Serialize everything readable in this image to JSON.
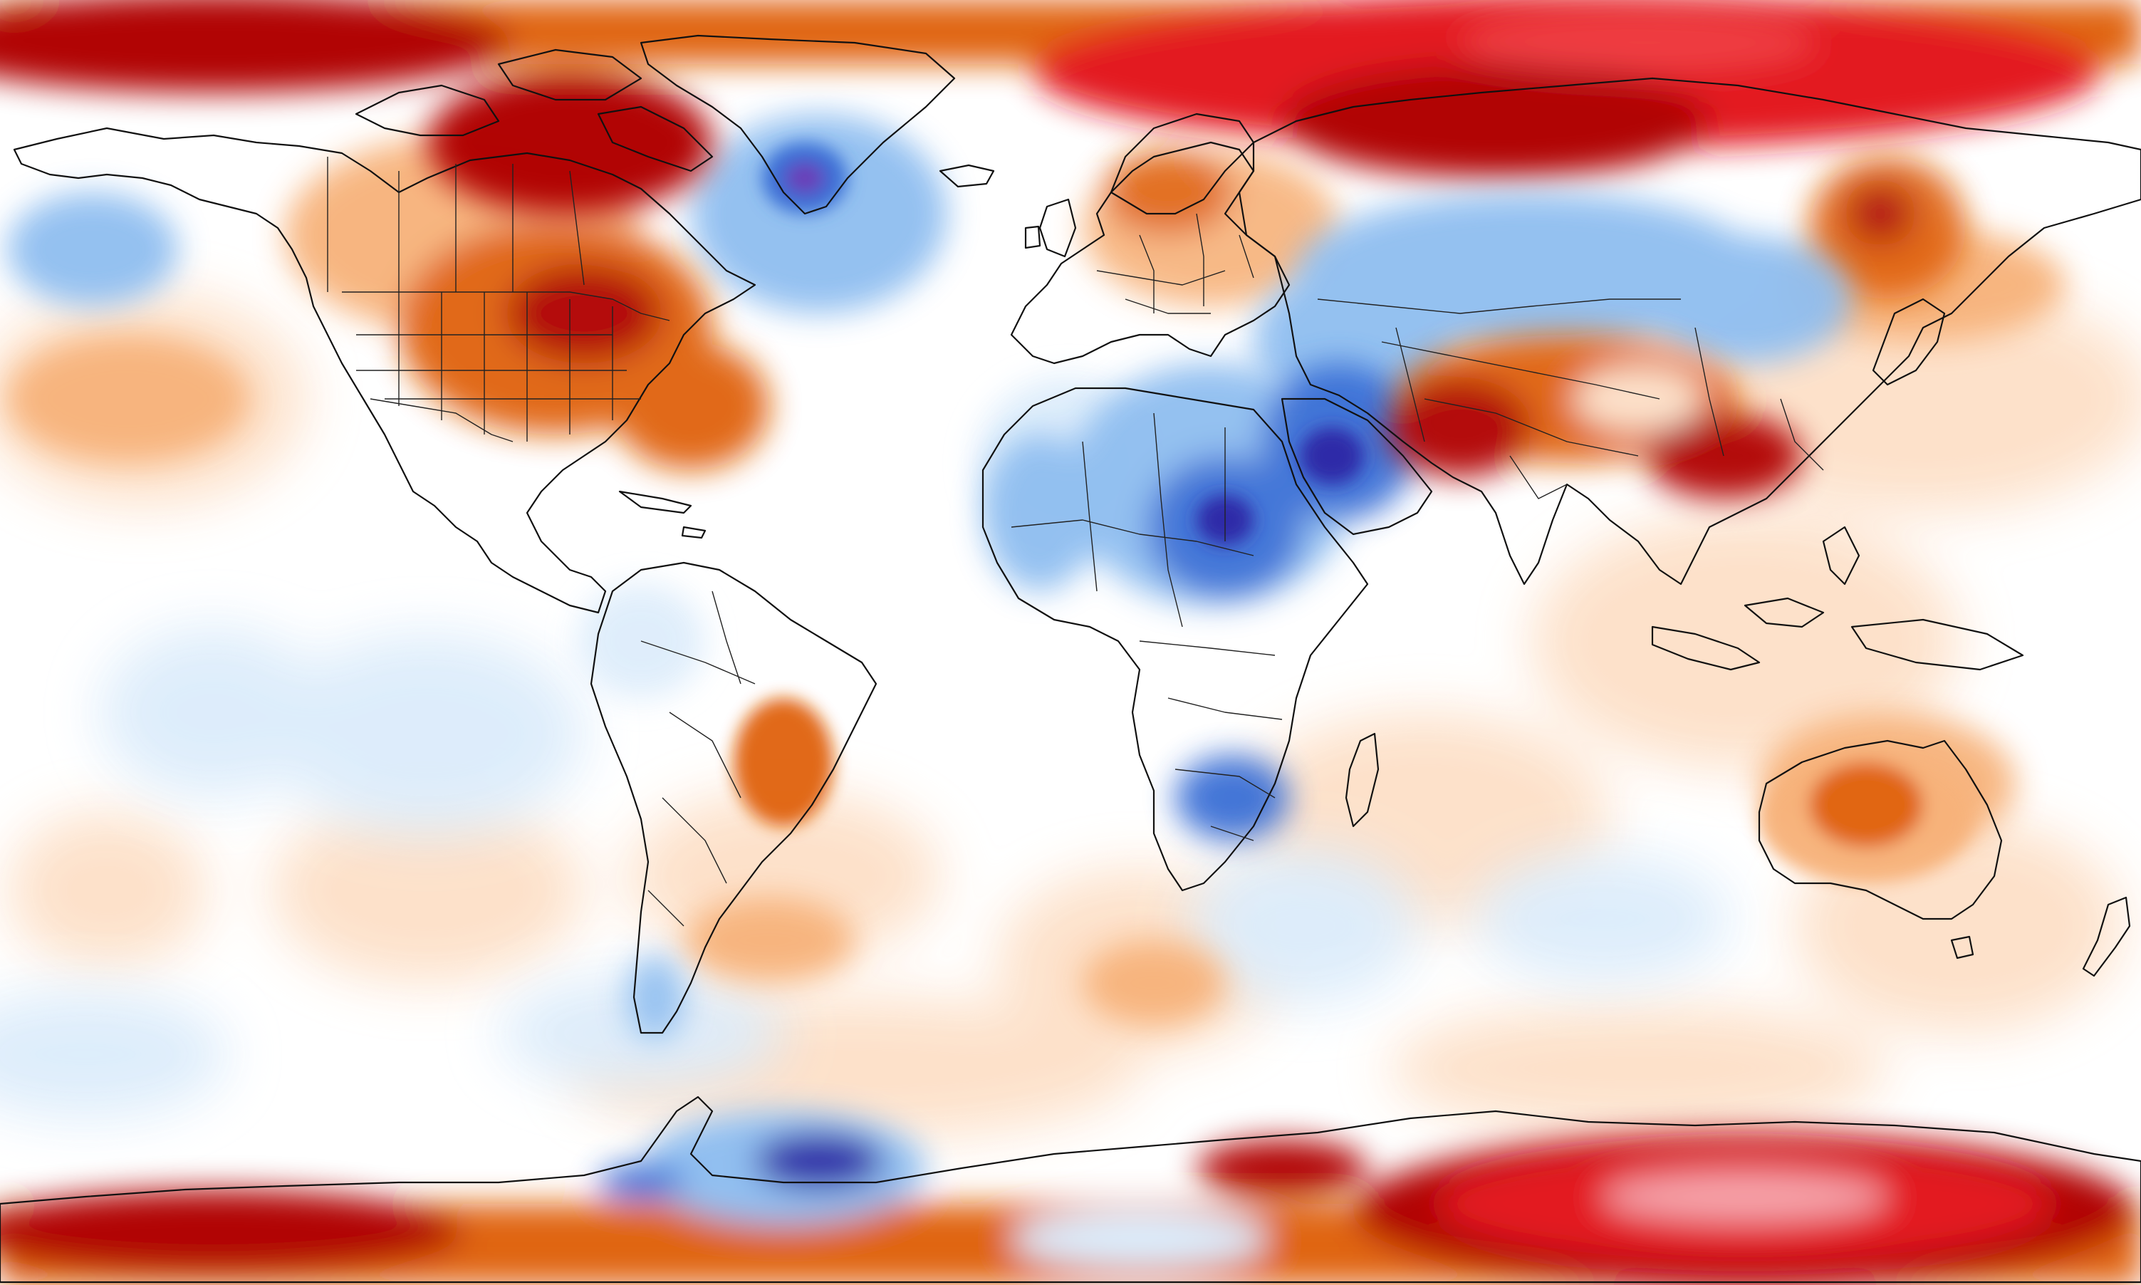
{
  "map": {
    "kind": "global temperature anomaly",
    "projection": "equirectangular",
    "extent": {
      "lon": [
        -180,
        180
      ],
      "lat": [
        -90,
        90
      ]
    },
    "colors": {
      "strong_warm": "#e3141b",
      "warm_core": "#b00000",
      "warm": "#e0620a",
      "mild_warm": "#f7b27a",
      "slight_warm": "#fde0c8",
      "neutral": "#ffffff",
      "slight_cool": "#dcecfb",
      "cool": "#8fbef0",
      "cold": "#3b6fd6",
      "very_cold": "#2f2aa8",
      "extreme_cold": "#6a3db8",
      "outline": "#111111"
    },
    "features": [
      "coastlines",
      "country-borders",
      "us-state-borders"
    ]
  }
}
